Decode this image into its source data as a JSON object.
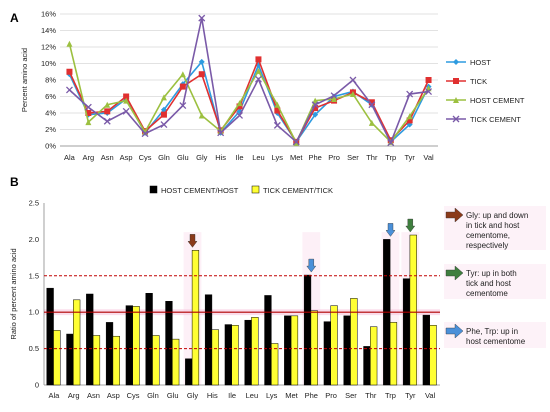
{
  "chart_data": [
    {
      "panel_label": "A",
      "type": "line",
      "categories": [
        "Ala",
        "Arg",
        "Asn",
        "Asp",
        "Cys",
        "Gln",
        "Glu",
        "Gly",
        "His",
        "Ile",
        "Leu",
        "Lys",
        "Met",
        "Phe",
        "Pro",
        "Ser",
        "Thr",
        "Trp",
        "Tyr",
        "Val"
      ],
      "ylabel": "Percent amino acid",
      "ylim": [
        0,
        16
      ],
      "yticks": [
        "0%",
        "2%",
        "4%",
        "6%",
        "8%",
        "10%",
        "12%",
        "14%",
        "16%"
      ],
      "grid": true,
      "legend_position": "right",
      "series": [
        {
          "name": "HOST",
          "color": "#2e9be0",
          "marker": "diamond",
          "values": [
            8.7,
            3.8,
            4.0,
            5.7,
            1.6,
            4.4,
            7.5,
            10.2,
            1.6,
            4.2,
            9.8,
            4.0,
            0.5,
            3.8,
            6.0,
            6.6,
            5.0,
            0.5,
            2.6,
            7.2
          ]
        },
        {
          "name": "TICK",
          "color": "#e03030",
          "marker": "square",
          "values": [
            9.0,
            4.0,
            4.2,
            6.0,
            1.8,
            3.8,
            7.2,
            8.7,
            1.9,
            4.8,
            10.5,
            4.3,
            0.5,
            4.6,
            5.5,
            6.5,
            5.3,
            0.7,
            3.1,
            8.0
          ]
        },
        {
          "name": "HOST CEMENT",
          "color": "#9cc040",
          "marker": "triangle",
          "values": [
            12.4,
            2.9,
            5.0,
            5.5,
            1.7,
            5.9,
            8.7,
            3.7,
            1.8,
            5.2,
            9.1,
            5.0,
            0.4,
            5.5,
            5.7,
            6.3,
            2.8,
            0.5,
            3.6,
            7.0
          ]
        },
        {
          "name": "TICK CEMENT",
          "color": "#7a5aa8",
          "marker": "x",
          "values": [
            6.8,
            4.7,
            3.0,
            4.2,
            1.5,
            2.6,
            4.9,
            15.5,
            1.6,
            3.7,
            8.1,
            2.5,
            0.5,
            5.0,
            6.1,
            8.0,
            5.0,
            0.4,
            6.3,
            6.6
          ]
        }
      ]
    },
    {
      "panel_label": "B",
      "type": "bar",
      "categories": [
        "Ala",
        "Arg",
        "Asn",
        "Asp",
        "Cys",
        "Gln",
        "Glu",
        "Gly",
        "His",
        "Ile",
        "Leu",
        "Lys",
        "Met",
        "Phe",
        "Pro",
        "Ser",
        "Thr",
        "Trp",
        "Tyr",
        "Val"
      ],
      "ylabel": "Ratio of percent amino acid",
      "ylim": [
        0,
        2.5
      ],
      "yticks": [
        "0",
        "0.5",
        "1.0",
        "1.5",
        "2.0",
        "2.5"
      ],
      "legend_position": "top",
      "reference_lines": [
        {
          "value": 1.0,
          "color": "#b00000",
          "style": "solid"
        },
        {
          "value": 1.5,
          "color": "#c00000",
          "style": "dashed"
        },
        {
          "value": 0.5,
          "color": "#c00000",
          "style": "dashed"
        }
      ],
      "series": [
        {
          "name": "HOST CEMENT/HOST",
          "color": "#000000",
          "values": [
            1.33,
            0.7,
            1.25,
            0.86,
            1.09,
            1.26,
            1.15,
            0.36,
            1.24,
            0.83,
            0.89,
            1.23,
            0.95,
            1.51,
            0.87,
            0.95,
            0.53,
            2.0,
            1.46,
            0.96
          ]
        },
        {
          "name": "TICK CEMENT/TICK",
          "color": "#ffff33",
          "values": [
            0.75,
            1.17,
            0.68,
            0.67,
            1.08,
            0.68,
            0.63,
            1.85,
            0.76,
            0.82,
            0.93,
            0.57,
            0.95,
            1.02,
            1.09,
            1.19,
            0.8,
            0.86,
            2.06,
            0.82
          ]
        }
      ],
      "highlighted_categories": [
        "Gly",
        "Phe",
        "Trp",
        "Tyr"
      ],
      "annotations": [
        {
          "category": "Gly",
          "arrow_color": "#8b3a1a",
          "text": "Gly: up and down in tick and host cementome, respectively"
        },
        {
          "category": "Tyr",
          "arrow_color": "#3f7f3f",
          "text": "Tyr: up in both tick and host cementome"
        },
        {
          "category": "Phe",
          "arrow_color": "#4a90d9",
          "text": "Phe, Trp: up in host cementome"
        },
        {
          "category": "Trp",
          "arrow_color": "#4a90d9",
          "text": ""
        }
      ]
    }
  ]
}
